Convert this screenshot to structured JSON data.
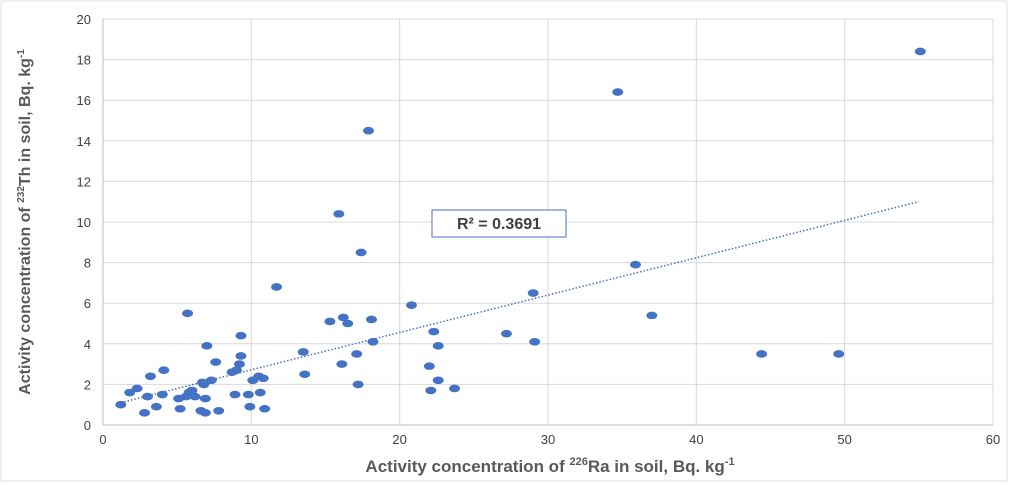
{
  "chart_data": {
    "type": "scatter",
    "xlabel_prefix": "Activity concentration of ",
    "xlabel_sup": "226",
    "xlabel_main": "Ra  in soil, Bq. kg",
    "xlabel_unit_sup": "-1",
    "ylabel_prefix": "Activity concentration of ",
    "ylabel_sup": "232",
    "ylabel_main": "Th  in soil, Bq. kg",
    "ylabel_unit_sup": "-1",
    "xlim": [
      0,
      60
    ],
    "ylim": [
      0,
      20
    ],
    "x_ticks": [
      "0",
      "10",
      "20",
      "30",
      "40",
      "50",
      "60"
    ],
    "y_ticks": [
      "0",
      "2",
      "4",
      "6",
      "8",
      "10",
      "12",
      "14",
      "16",
      "18",
      "20"
    ],
    "grid": true,
    "marker_color": "#4472c4",
    "trendline": {
      "type": "linear",
      "label": "R² = 0.3691",
      "x": [
        1.2,
        55
      ],
      "y": [
        1.1,
        11.0
      ]
    },
    "points": [
      {
        "x": 1.2,
        "y": 1.0
      },
      {
        "x": 1.8,
        "y": 1.6
      },
      {
        "x": 2.3,
        "y": 1.8
      },
      {
        "x": 2.8,
        "y": 0.6
      },
      {
        "x": 3.0,
        "y": 1.4
      },
      {
        "x": 3.2,
        "y": 2.4
      },
      {
        "x": 3.6,
        "y": 0.9
      },
      {
        "x": 4.0,
        "y": 1.5
      },
      {
        "x": 4.1,
        "y": 2.7
      },
      {
        "x": 5.1,
        "y": 1.3
      },
      {
        "x": 5.2,
        "y": 0.8
      },
      {
        "x": 5.6,
        "y": 1.4
      },
      {
        "x": 5.7,
        "y": 5.5
      },
      {
        "x": 5.8,
        "y": 1.6
      },
      {
        "x": 6.0,
        "y": 1.7
      },
      {
        "x": 6.2,
        "y": 1.4
      },
      {
        "x": 6.6,
        "y": 0.7
      },
      {
        "x": 6.7,
        "y": 2.1
      },
      {
        "x": 6.8,
        "y": 2.0
      },
      {
        "x": 6.9,
        "y": 0.6
      },
      {
        "x": 6.9,
        "y": 1.3
      },
      {
        "x": 7.0,
        "y": 3.9
      },
      {
        "x": 7.3,
        "y": 2.2
      },
      {
        "x": 7.6,
        "y": 3.1
      },
      {
        "x": 7.8,
        "y": 0.7
      },
      {
        "x": 8.7,
        "y": 2.6
      },
      {
        "x": 8.9,
        "y": 1.5
      },
      {
        "x": 9.0,
        "y": 2.7
      },
      {
        "x": 9.2,
        "y": 3.0
      },
      {
        "x": 9.3,
        "y": 3.4
      },
      {
        "x": 9.3,
        "y": 4.4
      },
      {
        "x": 9.8,
        "y": 1.5
      },
      {
        "x": 9.9,
        "y": 0.9
      },
      {
        "x": 10.1,
        "y": 2.2
      },
      {
        "x": 10.5,
        "y": 2.4
      },
      {
        "x": 10.6,
        "y": 1.6
      },
      {
        "x": 10.8,
        "y": 2.3
      },
      {
        "x": 10.9,
        "y": 0.8
      },
      {
        "x": 11.7,
        "y": 6.8
      },
      {
        "x": 13.5,
        "y": 3.6
      },
      {
        "x": 13.6,
        "y": 2.5
      },
      {
        "x": 15.3,
        "y": 5.1
      },
      {
        "x": 15.9,
        "y": 10.4
      },
      {
        "x": 16.1,
        "y": 3.0
      },
      {
        "x": 16.2,
        "y": 5.3
      },
      {
        "x": 16.5,
        "y": 5.0
      },
      {
        "x": 17.1,
        "y": 3.5
      },
      {
        "x": 17.2,
        "y": 2.0
      },
      {
        "x": 17.4,
        "y": 8.5
      },
      {
        "x": 17.9,
        "y": 14.5
      },
      {
        "x": 18.1,
        "y": 5.2
      },
      {
        "x": 18.2,
        "y": 4.1
      },
      {
        "x": 20.8,
        "y": 5.9
      },
      {
        "x": 22.0,
        "y": 2.9
      },
      {
        "x": 22.1,
        "y": 1.7
      },
      {
        "x": 22.3,
        "y": 4.6
      },
      {
        "x": 22.6,
        "y": 3.9
      },
      {
        "x": 22.6,
        "y": 2.2
      },
      {
        "x": 23.7,
        "y": 1.8
      },
      {
        "x": 27.2,
        "y": 4.5
      },
      {
        "x": 29.0,
        "y": 6.5
      },
      {
        "x": 29.1,
        "y": 4.1
      },
      {
        "x": 34.7,
        "y": 16.4
      },
      {
        "x": 35.9,
        "y": 7.9
      },
      {
        "x": 37.0,
        "y": 5.4
      },
      {
        "x": 44.4,
        "y": 3.5
      },
      {
        "x": 49.6,
        "y": 3.5
      },
      {
        "x": 55.1,
        "y": 18.4
      }
    ]
  }
}
